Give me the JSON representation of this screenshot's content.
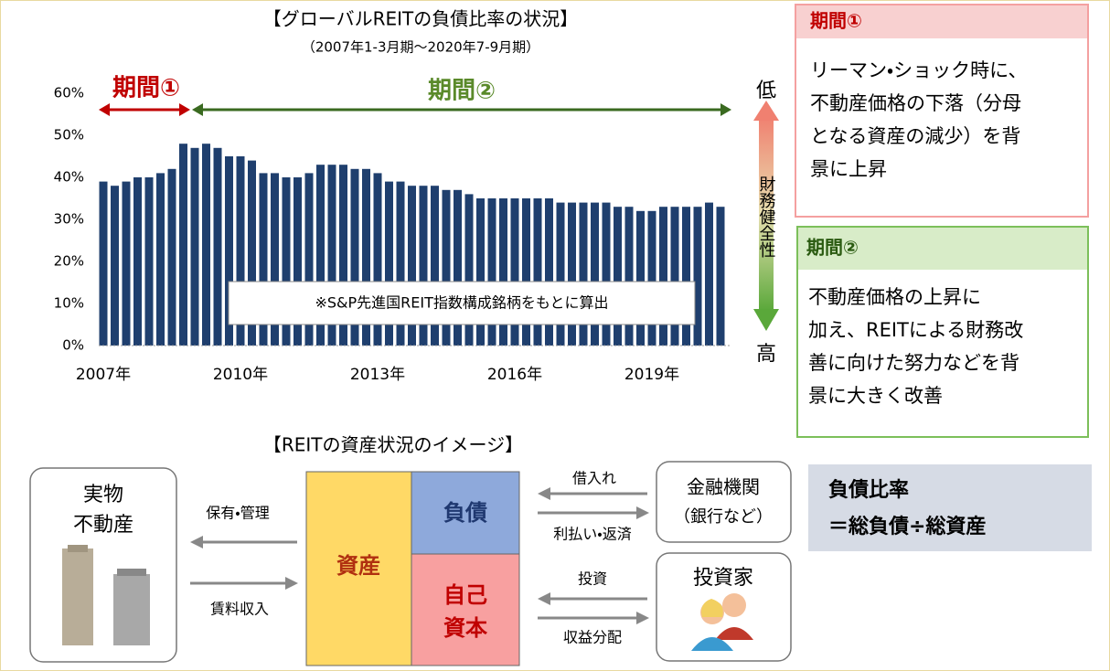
{
  "chart_data": {
    "type": "bar",
    "title": "【グローバルREITの負債比率の状況】",
    "subtitle": "（2007年1-3月期～2020年7-9月期）",
    "categories": [
      "2007年",
      null,
      null,
      null,
      null,
      null,
      null,
      null,
      null,
      null,
      null,
      null,
      "2010年",
      null,
      null,
      null,
      null,
      null,
      null,
      null,
      null,
      null,
      null,
      null,
      "2013年",
      null,
      null,
      null,
      null,
      null,
      null,
      null,
      null,
      null,
      null,
      null,
      "2016年",
      null,
      null,
      null,
      null,
      null,
      null,
      null,
      null,
      null,
      null,
      null,
      "2019年",
      null,
      null,
      null,
      null,
      null,
      null
    ],
    "values": [
      39,
      38,
      39,
      40,
      40,
      41,
      42,
      48,
      47,
      48,
      47,
      45,
      45,
      44,
      41,
      41,
      40,
      40,
      41,
      43,
      43,
      43,
      42,
      42,
      41,
      39,
      39,
      38,
      38,
      38,
      37,
      37,
      36,
      35,
      35,
      35,
      35,
      35,
      35,
      35,
      34,
      34,
      34,
      34,
      34,
      33,
      33,
      32,
      32,
      33,
      33,
      33,
      33,
      34,
      33
    ],
    "color": "#1f3f6e",
    "ylim": [
      0,
      60
    ],
    "yticks": [
      {
        "value": 0,
        "label": "0%"
      },
      {
        "value": 10,
        "label": "10%"
      },
      {
        "value": 20,
        "label": "20%"
      },
      {
        "value": 30,
        "label": "30%"
      },
      {
        "value": 40,
        "label": "40%"
      },
      {
        "value": 50,
        "label": "50%"
      },
      {
        "value": 60,
        "label": "60%"
      }
    ],
    "grid": false,
    "annotations": {
      "period1": "期間①",
      "period2": "期間②",
      "low": "低",
      "high": "高",
      "axis_note": "財務健全性",
      "note": "※S&P先進国REIT指数構成銘柄をもとに算出"
    }
  },
  "side_boxes": [
    {
      "header": "期間①",
      "lines": [
        "リーマン・ショック時に、",
        "不動産価格の下落（分母",
        "となる資産の減少）を背",
        "景に上昇"
      ]
    },
    {
      "header": "期間②",
      "lines": [
        "不動産価格の上昇に",
        "加え、REITによる財務改",
        "善に向けた努力などを背",
        "景に大きく改善"
      ]
    }
  ],
  "diagram": {
    "title": "【REITの資産状況のイメージ】",
    "property": [
      "実物",
      "不動産"
    ],
    "hold": "保有・管理",
    "rent": "賃料収入",
    "assets": "資産",
    "liabilities": "負債",
    "equity": [
      "自己",
      "資本"
    ],
    "borrow": "借入れ",
    "repay": "利払い・返済",
    "invest": "投資",
    "distribute": "収益分配",
    "bank": [
      "金融機関",
      "（銀行など）"
    ],
    "investor": "投資家",
    "formula": [
      "負債比率",
      "＝総負債÷総資産"
    ]
  }
}
